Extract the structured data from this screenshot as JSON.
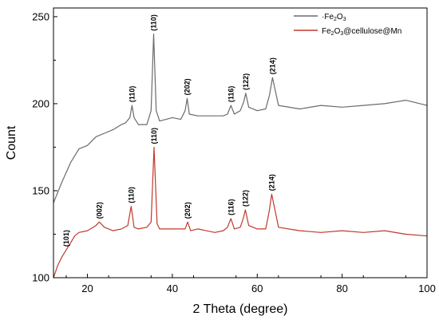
{
  "chart_data": {
    "type": "line",
    "xlabel": "2 Theta (degree)",
    "ylabel": "Count",
    "xlim": [
      12,
      100
    ],
    "ylim": [
      100,
      255
    ],
    "x_ticks": [
      20,
      40,
      60,
      80,
      100
    ],
    "y_ticks": [
      100,
      150,
      200,
      250
    ],
    "grid": false,
    "legend_position": "top-right",
    "series": [
      {
        "name": "Fe2O3",
        "legend_prefix": "·Fe",
        "legend_sub1": "2",
        "legend_mid": "O",
        "legend_sub2": "3",
        "legend_suffix": "",
        "color": "#6b6b6b",
        "x": [
          12,
          14,
          16,
          18,
          20,
          22,
          24,
          26,
          28,
          29,
          30,
          30.5,
          31,
          32,
          34,
          35,
          35.6,
          36.2,
          37,
          40,
          42,
          43,
          43.5,
          44,
          46,
          50,
          52,
          53,
          53.8,
          54.6,
          56,
          56.8,
          57.3,
          58,
          60,
          62,
          62.9,
          63.6,
          65,
          70,
          75,
          80,
          85,
          90,
          95,
          100
        ],
        "y": [
          143,
          155,
          166,
          174,
          176,
          181,
          183,
          185,
          188,
          189,
          192,
          199,
          192,
          188,
          188,
          196,
          240,
          196,
          190,
          192,
          191,
          196,
          203,
          194,
          193,
          193,
          193,
          194,
          199,
          194,
          196,
          201,
          206,
          198,
          196,
          197,
          205,
          215,
          199,
          197,
          199,
          198,
          199,
          200,
          202,
          199
        ]
      },
      {
        "name": "Fe2O3@cellulose@Mn",
        "legend_prefix": "Fe",
        "legend_sub1": "2",
        "legend_mid": "O",
        "legend_sub2": "3",
        "legend_suffix": "@cellulose@Mn",
        "color": "#c0392b",
        "x": [
          12,
          13,
          14,
          15,
          16,
          17,
          18,
          20,
          22,
          22.8,
          24,
          26,
          28,
          29.5,
          30.3,
          31,
          32,
          34,
          35,
          35.7,
          36.4,
          37,
          40,
          43,
          43.6,
          44.3,
          46,
          50,
          52,
          53,
          53.8,
          54.6,
          56,
          56.7,
          57.2,
          58,
          60,
          62,
          62.8,
          63.4,
          65,
          70,
          75,
          80,
          85,
          90,
          95,
          100
        ],
        "y": [
          100,
          107,
          112,
          116,
          120,
          124,
          126,
          127,
          130,
          132,
          129,
          127,
          128,
          130,
          141,
          129,
          128,
          129,
          132,
          175,
          131,
          128,
          128,
          128,
          132,
          127,
          128,
          126,
          127,
          129,
          134,
          128,
          129,
          134,
          139,
          130,
          128,
          128,
          138,
          148,
          129,
          127,
          126,
          127,
          126,
          127,
          125,
          124
        ]
      }
    ],
    "annotations": [
      {
        "text": "(110)",
        "x": 35.6,
        "y": 240
      },
      {
        "text": "(110)",
        "x": 30.5,
        "y": 199
      },
      {
        "text": "(202)",
        "x": 43.5,
        "y": 203
      },
      {
        "text": "(116)",
        "x": 53.8,
        "y": 199
      },
      {
        "text": "(122)",
        "x": 57.3,
        "y": 206
      },
      {
        "text": "(214)",
        "x": 63.6,
        "y": 215
      },
      {
        "text": "(101)",
        "x": 15,
        "y": 116
      },
      {
        "text": "(002)",
        "x": 22.8,
        "y": 132
      },
      {
        "text": "(110)",
        "x": 30.3,
        "y": 141
      },
      {
        "text": "(110)",
        "x": 35.7,
        "y": 175
      },
      {
        "text": "(202)",
        "x": 43.6,
        "y": 132
      },
      {
        "text": "(116)",
        "x": 53.8,
        "y": 134
      },
      {
        "text": "(122)",
        "x": 57.2,
        "y": 139
      },
      {
        "text": "(214)",
        "x": 63.4,
        "y": 148
      }
    ]
  }
}
